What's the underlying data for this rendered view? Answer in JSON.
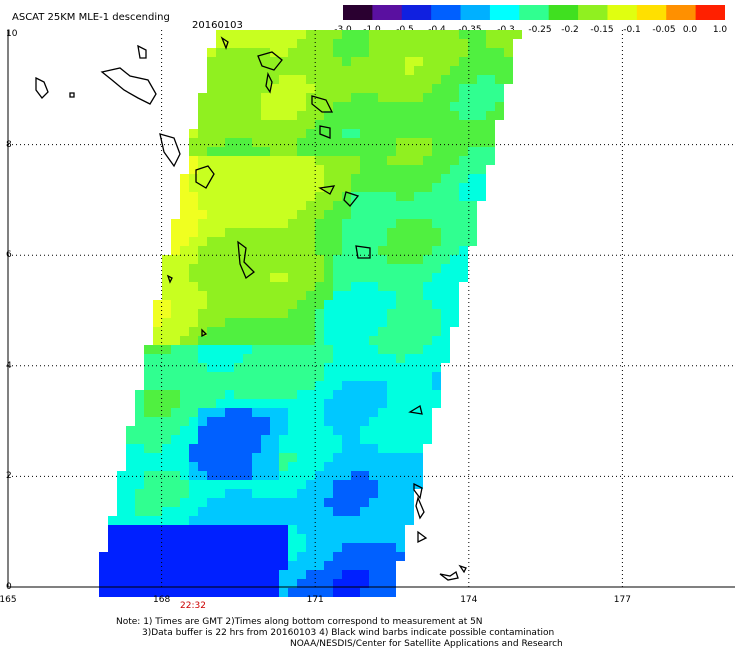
{
  "header": {
    "title": "ASCAT 25KM MLE-1 descending",
    "date": "20160103"
  },
  "colorbar": {
    "ticks": [
      "-3.0",
      "-1.0",
      "-0.5",
      "-0.4",
      "-0.35",
      "-0.3",
      "-0.25",
      "-0.2",
      "-0.15",
      "-0.1",
      "-0.05",
      "0.0",
      "1.0"
    ],
    "colors": [
      "#2a0030",
      "#5a10a0",
      "#1020e0",
      "#0060ff",
      "#00b0ff",
      "#00ffff",
      "#30ff90",
      "#40e020",
      "#90f020",
      "#e0ff10",
      "#ffe000",
      "#ff9000",
      "#ff2000"
    ]
  },
  "axes": {
    "y_ticks": [
      "10",
      "8",
      "6",
      "4",
      "2",
      "0"
    ],
    "x_ticks": [
      "165",
      "168",
      "171",
      "174",
      "177"
    ],
    "ylim": [
      0,
      10
    ],
    "xlim": [
      165,
      179
    ]
  },
  "swath": {
    "time_label": "22:32"
  },
  "notes": {
    "line1": "Note: 1) Times are GMT 2)Times along bottom correspond to measurement at 5N",
    "line2": "3)Data buffer is 22 hrs from 20160103 4) Black wind barbs indicate possible contamination",
    "line3": "NOAA/NESDIS/Center for Satellite Applications and Research"
  }
}
